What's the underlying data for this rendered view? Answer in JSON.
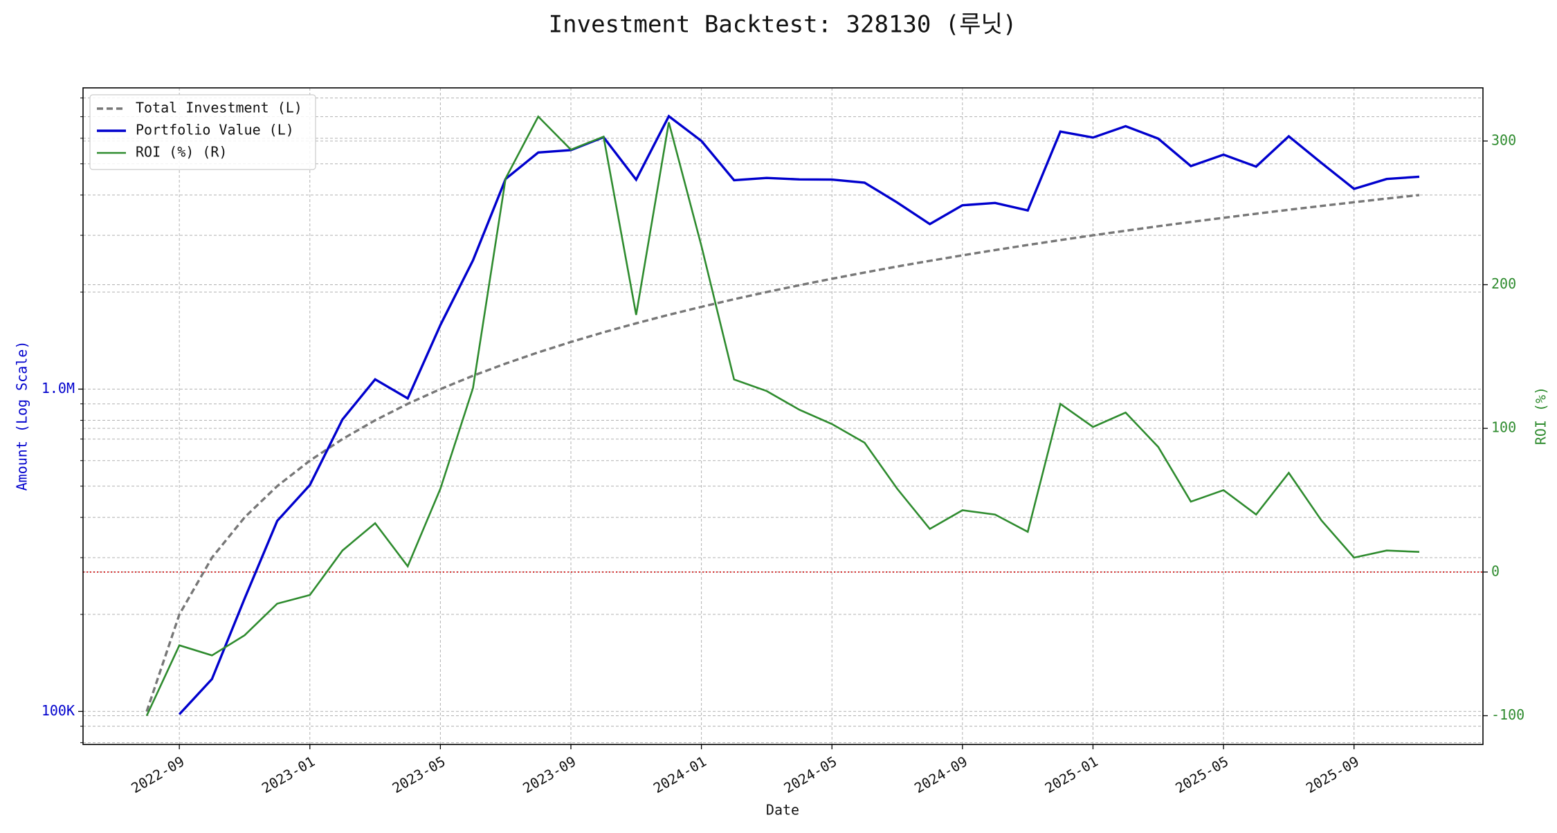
{
  "chart_data": {
    "type": "line",
    "title": "Investment Backtest: 328130 (루닛)",
    "xlabel": "Date",
    "ylabel": "Amount (Log Scale)",
    "y2label": "ROI (%)",
    "x": [
      "2022-08",
      "2022-09",
      "2022-10",
      "2022-11",
      "2022-12",
      "2023-01",
      "2023-02",
      "2023-03",
      "2023-04",
      "2023-05",
      "2023-06",
      "2023-07",
      "2023-08",
      "2023-09",
      "2023-10",
      "2023-11",
      "2023-12",
      "2024-01",
      "2024-02",
      "2024-03",
      "2024-04",
      "2024-05",
      "2024-06",
      "2024-07",
      "2024-08",
      "2024-09",
      "2024-10",
      "2024-11",
      "2024-12",
      "2025-01",
      "2025-02",
      "2025-03",
      "2025-04",
      "2025-05",
      "2025-06",
      "2025-07",
      "2025-08",
      "2025-09",
      "2025-10",
      "2025-11"
    ],
    "xticks": [
      "2022-09",
      "2023-01",
      "2023-05",
      "2023-09",
      "2024-01",
      "2024-05",
      "2024-09",
      "2025-01",
      "2025-05",
      "2025-09"
    ],
    "ylog": true,
    "ylim": [
      79000,
      8600000
    ],
    "yticks": [
      {
        "value": 100000,
        "label": "100K"
      },
      {
        "value": 1000000,
        "label": "1.0M"
      }
    ],
    "yminor_ticks": [
      80000,
      90000,
      200000,
      300000,
      400000,
      500000,
      600000,
      700000,
      800000,
      900000,
      2000000,
      3000000,
      4000000,
      5000000,
      6000000,
      7000000,
      8000000
    ],
    "y2lim": [
      -120,
      337
    ],
    "y2ticks": [
      -100,
      0,
      100,
      200,
      300
    ],
    "grid": true,
    "legend": "upper left",
    "reference_line": {
      "axis": "y2",
      "value": 0,
      "color": "#cc0000"
    },
    "series": [
      {
        "name": "Total Investment (L)",
        "color": "#777777",
        "linestyle": "dashed",
        "axis": "y",
        "values": [
          100000,
          200000,
          300000,
          400000,
          500000,
          600000,
          700000,
          800000,
          900000,
          1000000,
          1100000,
          1200000,
          1300000,
          1400000,
          1500000,
          1600000,
          1700000,
          1800000,
          1900000,
          2000000,
          2100000,
          2200000,
          2300000,
          2400000,
          2500000,
          2600000,
          2700000,
          2800000,
          2900000,
          3000000,
          3100000,
          3200000,
          3300000,
          3400000,
          3500000,
          3600000,
          3700000,
          3800000,
          3900000,
          4000000
        ]
      },
      {
        "name": "Portfolio Value (L)",
        "color": "#0000cd",
        "linestyle": "solid",
        "axis": "y",
        "values": [
          null,
          98000,
          126000,
          224000,
          390000,
          504000,
          805000,
          1072000,
          936000,
          1580000,
          2508000,
          4488000,
          5421000,
          5516000,
          6045000,
          4464000,
          7021000,
          5886000,
          4446000,
          4520000,
          4473000,
          4466000,
          4370000,
          3792000,
          3250000,
          3718000,
          3780000,
          3584000,
          6293000,
          6030000,
          6541000,
          5984000,
          4917000,
          5338000,
          4900000,
          6084000,
          5032000,
          4180000,
          4485000,
          4560000
        ]
      },
      {
        "name": "ROI (%) (R)",
        "color": "#2e8b2e",
        "linestyle": "solid",
        "axis": "y2",
        "values": [
          -100,
          -51,
          -58,
          -44,
          -22,
          -16,
          15,
          34,
          4,
          58,
          128,
          274,
          317,
          294,
          303,
          179,
          313,
          227,
          134,
          126,
          113,
          103,
          90,
          58,
          30,
          43,
          40,
          28,
          117,
          101,
          111,
          87,
          49,
          57,
          40,
          69,
          36,
          10,
          15,
          14
        ]
      }
    ]
  }
}
